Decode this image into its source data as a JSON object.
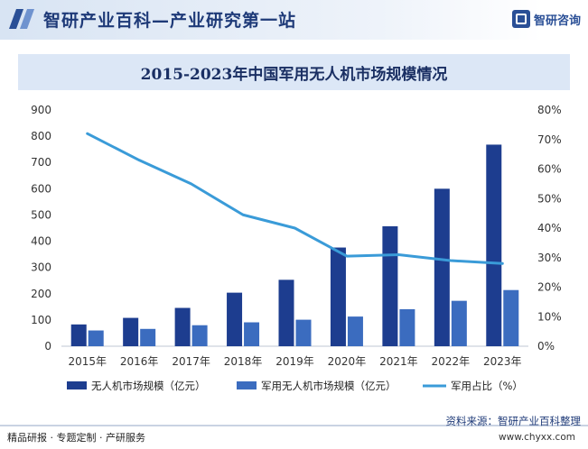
{
  "header": {
    "title": "智研产业百科—产业研究第一站",
    "logo_text": "智研咨询"
  },
  "colors": {
    "bar_dark": "#1d3d8f",
    "bar_light": "#3b6cbf",
    "line": "#3a9bd8",
    "header_marker": "#2a4f96",
    "title_band": "#dce7f6"
  },
  "chart_data": {
    "type": "bar",
    "title": "2015-2023年中国军用无人机市场规模情况",
    "categories": [
      "2015年",
      "2016年",
      "2017年",
      "2018年",
      "2019年",
      "2020年",
      "2021年",
      "2022年",
      "2023年"
    ],
    "series": [
      {
        "name": "无人机市场规模（亿元）",
        "type": "bar",
        "axis": "left",
        "values": [
          83,
          108,
          146,
          204,
          253,
          376,
          457,
          600,
          768
        ]
      },
      {
        "name": "军用无人机市场规模（亿元）",
        "type": "bar",
        "axis": "left",
        "values": [
          60,
          66,
          80,
          91,
          101,
          113,
          141,
          173,
          214
        ]
      },
      {
        "name": "军用占比（%）",
        "type": "line",
        "axis": "right",
        "values": [
          72,
          63,
          55,
          44.5,
          40,
          30.5,
          31,
          29,
          28
        ]
      }
    ],
    "y_left": {
      "min": 0,
      "max": 900,
      "step": 100
    },
    "y_right": {
      "min": 0,
      "max": 80,
      "step": 10,
      "unit": "%"
    },
    "grid": false,
    "legend_position": "bottom"
  },
  "footer": {
    "left": "精品研报 · 专题定制 · 产研服务",
    "source": "资料来源：智研产业百科整理",
    "url": "www.chyxx.com"
  }
}
